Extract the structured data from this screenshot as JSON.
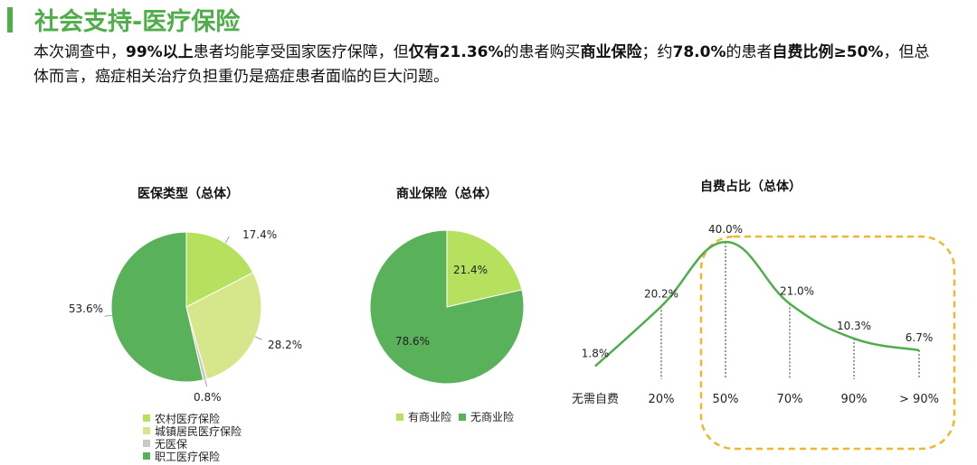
{
  "page": {
    "title": "社会支持-医疗保险",
    "summary": [
      {
        "t": "本次调查中，",
        "b": false
      },
      {
        "t": "99%以上",
        "b": true
      },
      {
        "t": "患者均能享受国家医疗保障，但",
        "b": false
      },
      {
        "t": "仅有21.36%",
        "b": true
      },
      {
        "t": "的患者购买",
        "b": false
      },
      {
        "t": "商业保险",
        "b": true
      },
      {
        "t": "；约",
        "b": false
      },
      {
        "t": "78.0%",
        "b": true
      },
      {
        "t": "的患者",
        "b": false
      },
      {
        "t": "自费比例≥50%",
        "b": true
      },
      {
        "t": "，但总体而言，癌症相关治疗负担重仍是癌症患者面临的巨大问题。",
        "b": false
      }
    ]
  },
  "colors": {
    "accent": "#4fae4a",
    "light_green": "#b5e15f",
    "yellow_green": "#d6e68a",
    "grey": "#c8c8c8",
    "mid_green": "#59b159",
    "highlight": "#f2b52f"
  },
  "chart_data": [
    {
      "type": "pie",
      "title": "医保类型（总体）",
      "slices": [
        {
          "label": "农村医疗保险",
          "value": 17.4,
          "display": "17.4%",
          "color": "#b5e15f"
        },
        {
          "label": "城镇居民医疗保险",
          "value": 28.2,
          "display": "28.2%",
          "color": "#d6e68a"
        },
        {
          "label": "无医保",
          "value": 0.8,
          "display": "0.8%",
          "color": "#c8c8c8"
        },
        {
          "label": "职工医疗保险",
          "value": 53.6,
          "display": "53.6%",
          "color": "#59b159"
        }
      ],
      "legend": "bottom"
    },
    {
      "type": "pie",
      "title": "商业保险（总体）",
      "slices": [
        {
          "label": "有商业险",
          "value": 21.4,
          "display": "21.4%",
          "color": "#b5e15f"
        },
        {
          "label": "无商业险",
          "value": 78.6,
          "display": "78.6%",
          "color": "#59b159"
        }
      ],
      "legend": "bottom"
    },
    {
      "type": "line",
      "title": "自费占比（总体）",
      "categories": [
        "无需自费",
        "20%",
        "50%",
        "70%",
        "90%",
        "> 90%"
      ],
      "values": [
        1.8,
        20.2,
        40.0,
        21.0,
        10.3,
        6.7
      ],
      "labels": [
        "1.8%",
        "20.2%",
        "40.0%",
        "21.0%",
        "10.3%",
        "6.7%"
      ],
      "smooth": true,
      "highlight_categories": [
        "50%",
        "70%",
        "90%",
        "> 90%"
      ]
    }
  ]
}
